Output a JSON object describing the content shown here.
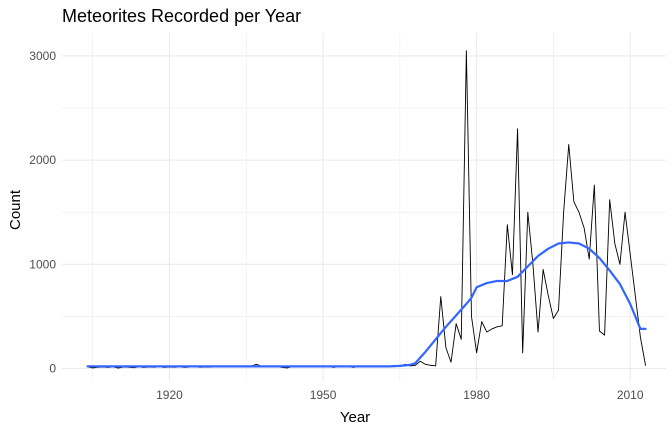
{
  "chart_data": {
    "type": "line",
    "title": "Meteorites Recorded per Year",
    "xlabel": "Year",
    "ylabel": "Count",
    "xlim": [
      1899,
      2017
    ],
    "ylim": [
      -120,
      3220
    ],
    "x_ticks": [
      1920,
      1950,
      1980,
      2010
    ],
    "y_ticks": [
      0,
      1000,
      2000,
      3000
    ],
    "grid": true,
    "colors": {
      "raw": "#000000",
      "smooth": "#3366ff",
      "grid": "#ebebeb"
    },
    "series": [
      {
        "role": "raw",
        "x": [
          1904,
          1905,
          1906,
          1907,
          1908,
          1909,
          1910,
          1911,
          1912,
          1913,
          1914,
          1915,
          1916,
          1917,
          1918,
          1919,
          1920,
          1921,
          1922,
          1923,
          1924,
          1925,
          1926,
          1927,
          1928,
          1929,
          1930,
          1931,
          1932,
          1933,
          1934,
          1935,
          1936,
          1937,
          1938,
          1939,
          1940,
          1941,
          1942,
          1943,
          1944,
          1945,
          1946,
          1947,
          1948,
          1949,
          1950,
          1951,
          1952,
          1953,
          1954,
          1955,
          1956,
          1957,
          1958,
          1959,
          1960,
          1961,
          1962,
          1963,
          1964,
          1965,
          1966,
          1967,
          1968,
          1969,
          1970,
          1971,
          1972,
          1973,
          1974,
          1975,
          1976,
          1977,
          1978,
          1979,
          1980,
          1981,
          1982,
          1983,
          1984,
          1985,
          1986,
          1987,
          1988,
          1989,
          1990,
          1991,
          1992,
          1993,
          1994,
          1995,
          1996,
          1997,
          1998,
          1999,
          2000,
          2001,
          2002,
          2003,
          2004,
          2005,
          2006,
          2007,
          2008,
          2009,
          2010,
          2011,
          2012,
          2013
        ],
        "y": [
          15,
          5,
          12,
          14,
          10,
          15,
          4,
          14,
          12,
          8,
          15,
          10,
          14,
          12,
          16,
          10,
          14,
          12,
          15,
          10,
          14,
          16,
          12,
          14,
          13,
          18,
          22,
          20,
          18,
          25,
          20,
          16,
          24,
          40,
          20,
          14,
          26,
          18,
          10,
          5,
          18,
          20,
          16,
          14,
          18,
          20,
          20,
          22,
          10,
          18,
          20,
          16,
          10,
          22,
          15,
          25,
          18,
          20,
          24,
          22,
          30,
          18,
          40,
          25,
          30,
          70,
          40,
          30,
          26,
          690,
          200,
          60,
          430,
          280,
          3050,
          500,
          150,
          450,
          350,
          380,
          400,
          410,
          1380,
          900,
          2300,
          150,
          1500,
          1000,
          350,
          950,
          700,
          480,
          560,
          1500,
          2150,
          1600,
          1500,
          1350,
          1050,
          1760,
          360,
          320,
          1620,
          1200,
          1000,
          1500,
          1100,
          700,
          300,
          30
        ]
      },
      {
        "role": "smooth",
        "x": [
          1904,
          1910,
          1920,
          1930,
          1940,
          1950,
          1955,
          1960,
          1963,
          1965,
          1967,
          1968,
          1970,
          1972,
          1974,
          1976,
          1978,
          1979,
          1980,
          1982,
          1984,
          1986,
          1988,
          1990,
          1992,
          1994,
          1996,
          1998,
          2000,
          2002,
          2004,
          2006,
          2008,
          2010,
          2012,
          2013
        ],
        "y": [
          20,
          20,
          20,
          20,
          20,
          20,
          20,
          20,
          20,
          25,
          35,
          50,
          160,
          280,
          400,
          510,
          620,
          680,
          780,
          820,
          840,
          840,
          880,
          980,
          1080,
          1150,
          1200,
          1210,
          1200,
          1150,
          1060,
          940,
          810,
          620,
          380,
          380
        ]
      }
    ]
  }
}
